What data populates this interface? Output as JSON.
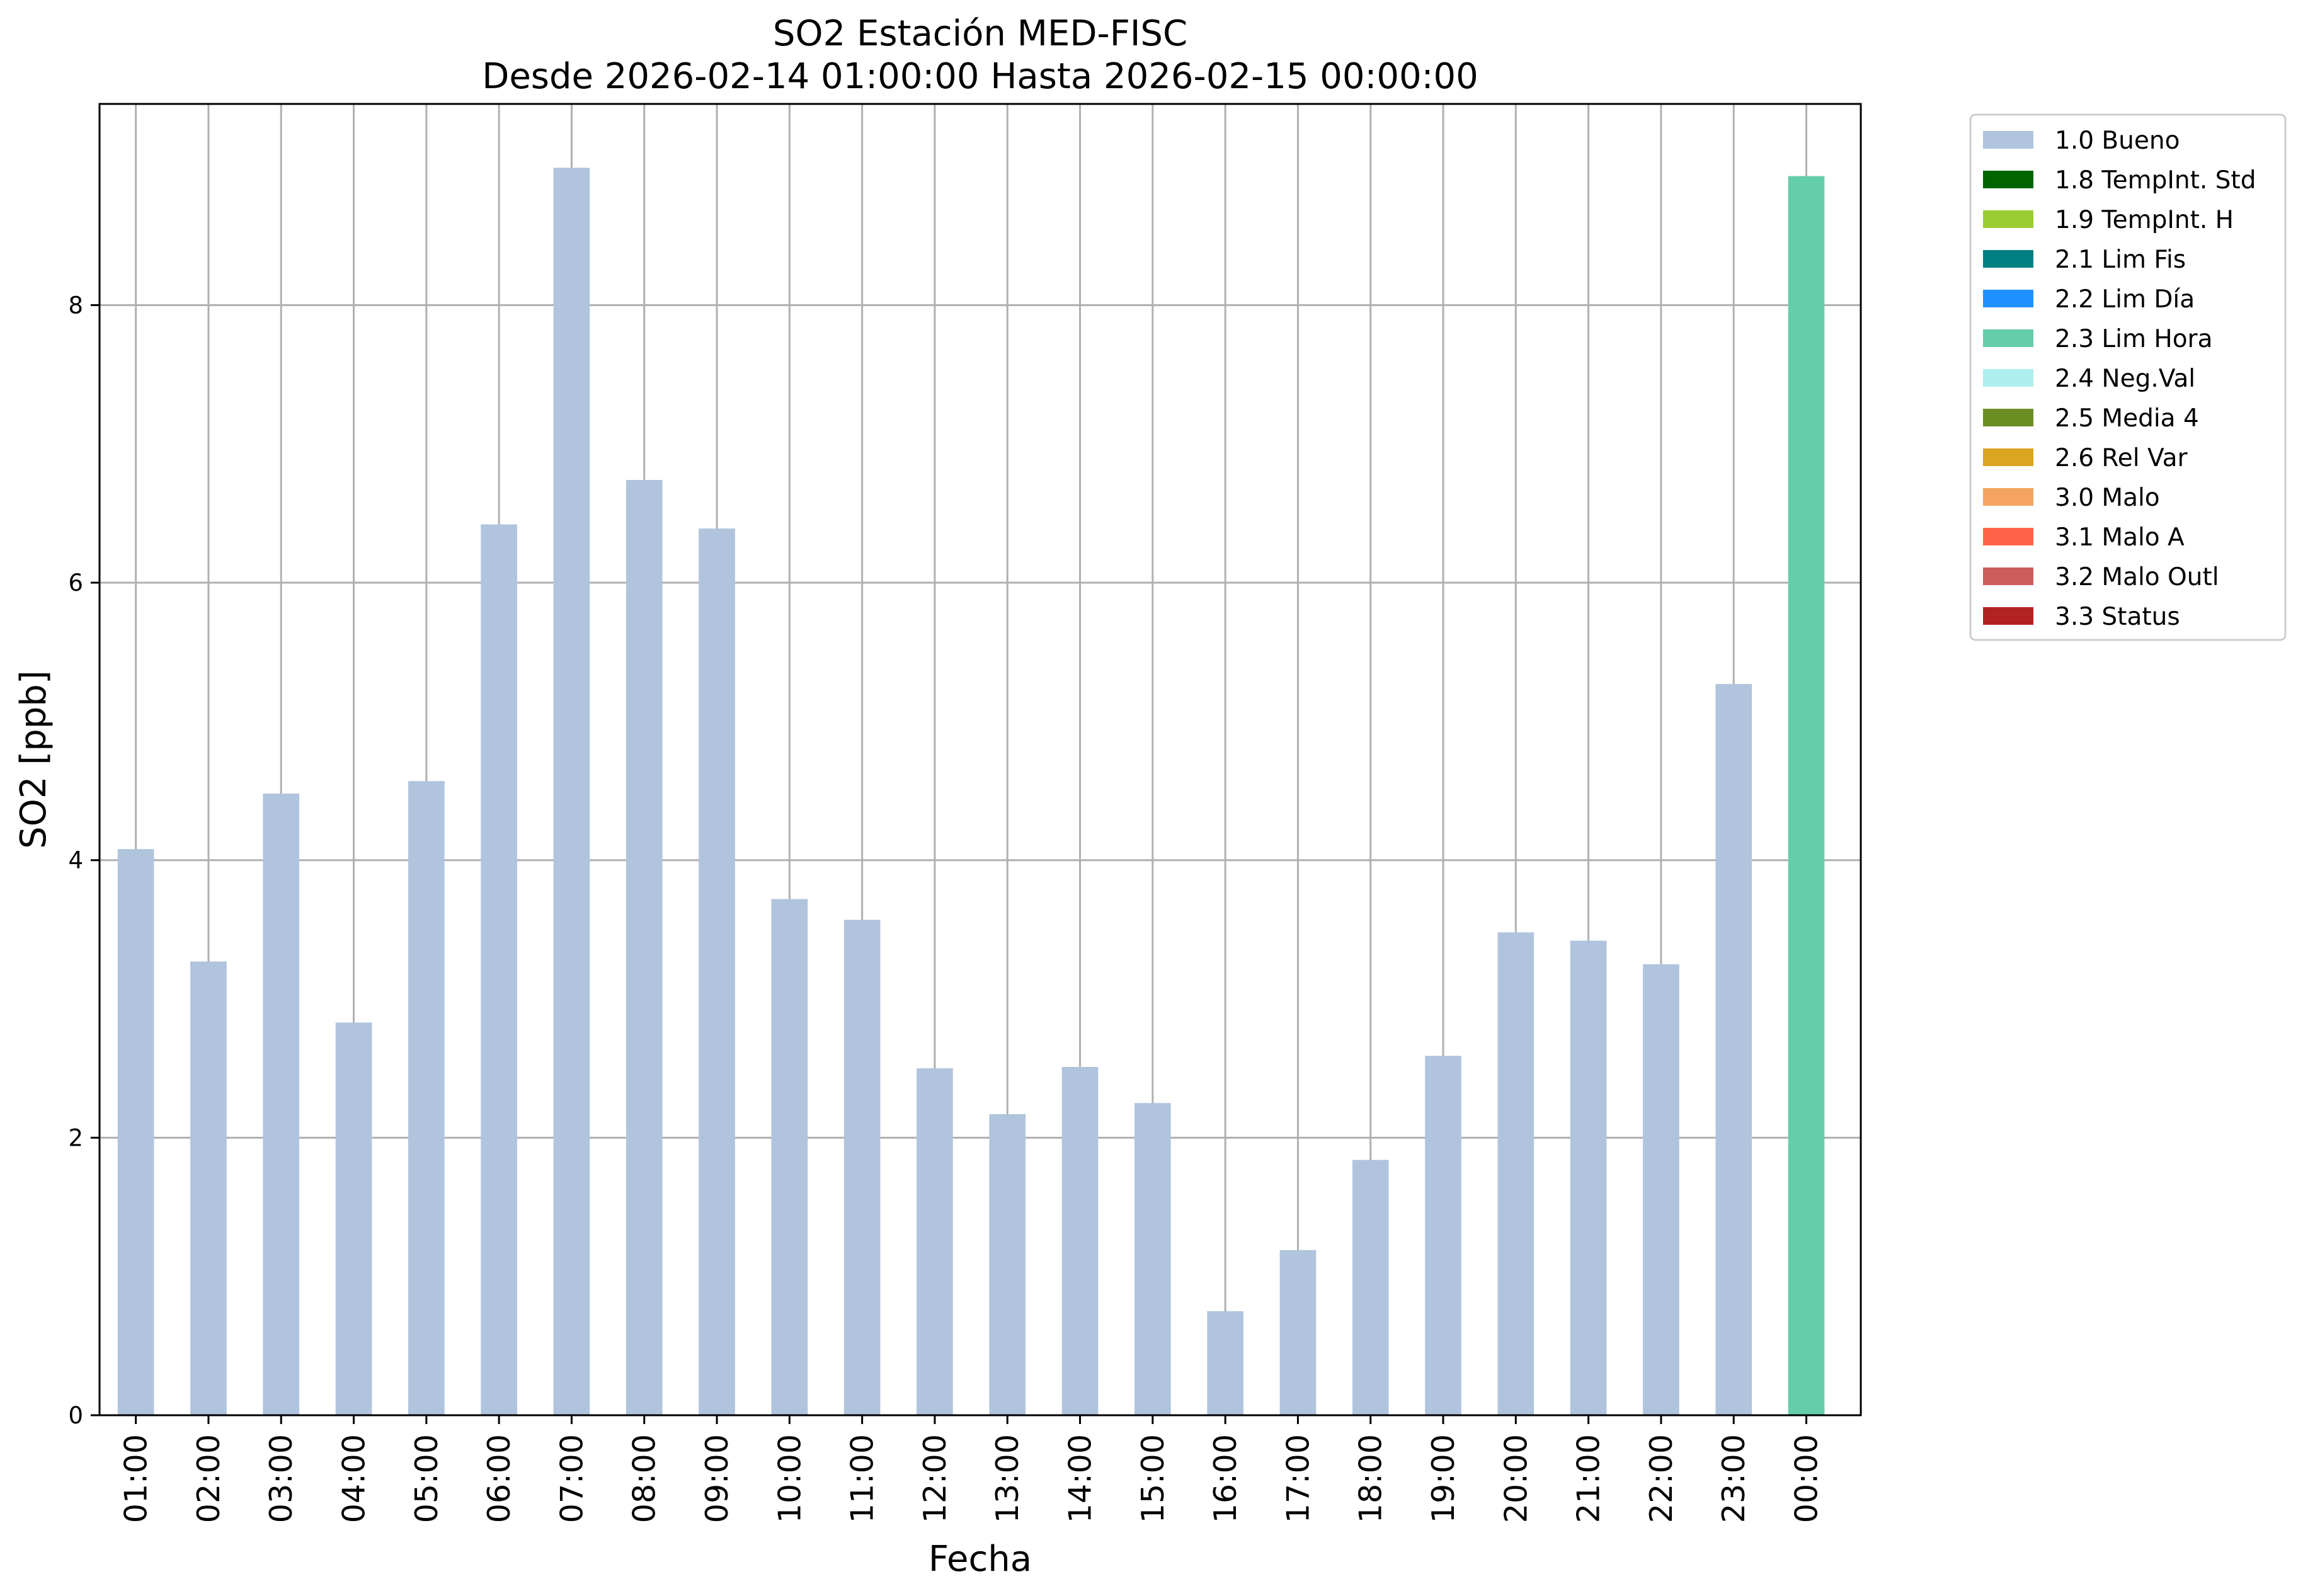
{
  "chart_data": {
    "type": "bar",
    "title": "SO2 Estación MED-FISC",
    "subtitle": "Desde 2026-02-14 01:00:00 Hasta 2026-02-15 00:00:00",
    "xlabel": "Fecha",
    "ylabel": "SO2 [ppb]",
    "ylim": [
      0,
      9.45
    ],
    "yticks": [
      "0",
      "2",
      "4",
      "6",
      "8"
    ],
    "grid": true,
    "legend_position": "outside-top-right",
    "categories": [
      "01:00",
      "02:00",
      "03:00",
      "04:00",
      "05:00",
      "06:00",
      "07:00",
      "08:00",
      "09:00",
      "10:00",
      "11:00",
      "12:00",
      "13:00",
      "14:00",
      "15:00",
      "16:00",
      "17:00",
      "18:00",
      "19:00",
      "20:00",
      "21:00",
      "22:00",
      "23:00",
      "00:00"
    ],
    "values": [
      4.08,
      3.27,
      4.48,
      2.83,
      4.57,
      6.42,
      8.99,
      6.74,
      6.39,
      3.72,
      3.57,
      2.5,
      2.17,
      2.51,
      2.25,
      0.75,
      1.19,
      1.84,
      2.59,
      3.48,
      3.42,
      3.25,
      5.27,
      8.93
    ],
    "bar_flags": [
      "1.0",
      "1.0",
      "1.0",
      "1.0",
      "1.0",
      "1.0",
      "1.0",
      "1.0",
      "1.0",
      "1.0",
      "1.0",
      "1.0",
      "1.0",
      "1.0",
      "1.0",
      "1.0",
      "1.0",
      "1.0",
      "1.0",
      "1.0",
      "1.0",
      "1.0",
      "1.0",
      "2.3"
    ],
    "legend": [
      {
        "code": "1.0",
        "label": "1.0 Bueno",
        "color": "#b0c4de"
      },
      {
        "code": "1.8",
        "label": "1.8 TempInt. Std",
        "color": "#006400"
      },
      {
        "code": "1.9",
        "label": "1.9 TempInt. H",
        "color": "#9acd32"
      },
      {
        "code": "2.1",
        "label": "2.1 Lim Fis",
        "color": "#008080"
      },
      {
        "code": "2.2",
        "label": "2.2 Lim Día",
        "color": "#1e90ff"
      },
      {
        "code": "2.3",
        "label": "2.3 Lim Hora",
        "color": "#66cdaa"
      },
      {
        "code": "2.4",
        "label": "2.4 Neg.Val",
        "color": "#afeeee"
      },
      {
        "code": "2.5",
        "label": "2.5 Media 4",
        "color": "#6b8e23"
      },
      {
        "code": "2.6",
        "label": "2.6 Rel Var",
        "color": "#daa520"
      },
      {
        "code": "3.0",
        "label": "3.0 Malo",
        "color": "#f4a460"
      },
      {
        "code": "3.1",
        "label": "3.1 Malo A",
        "color": "#ff6347"
      },
      {
        "code": "3.2",
        "label": "3.2 Malo Outl",
        "color": "#cd5c5c"
      },
      {
        "code": "3.3",
        "label": "3.3 Status",
        "color": "#b22222"
      }
    ]
  }
}
